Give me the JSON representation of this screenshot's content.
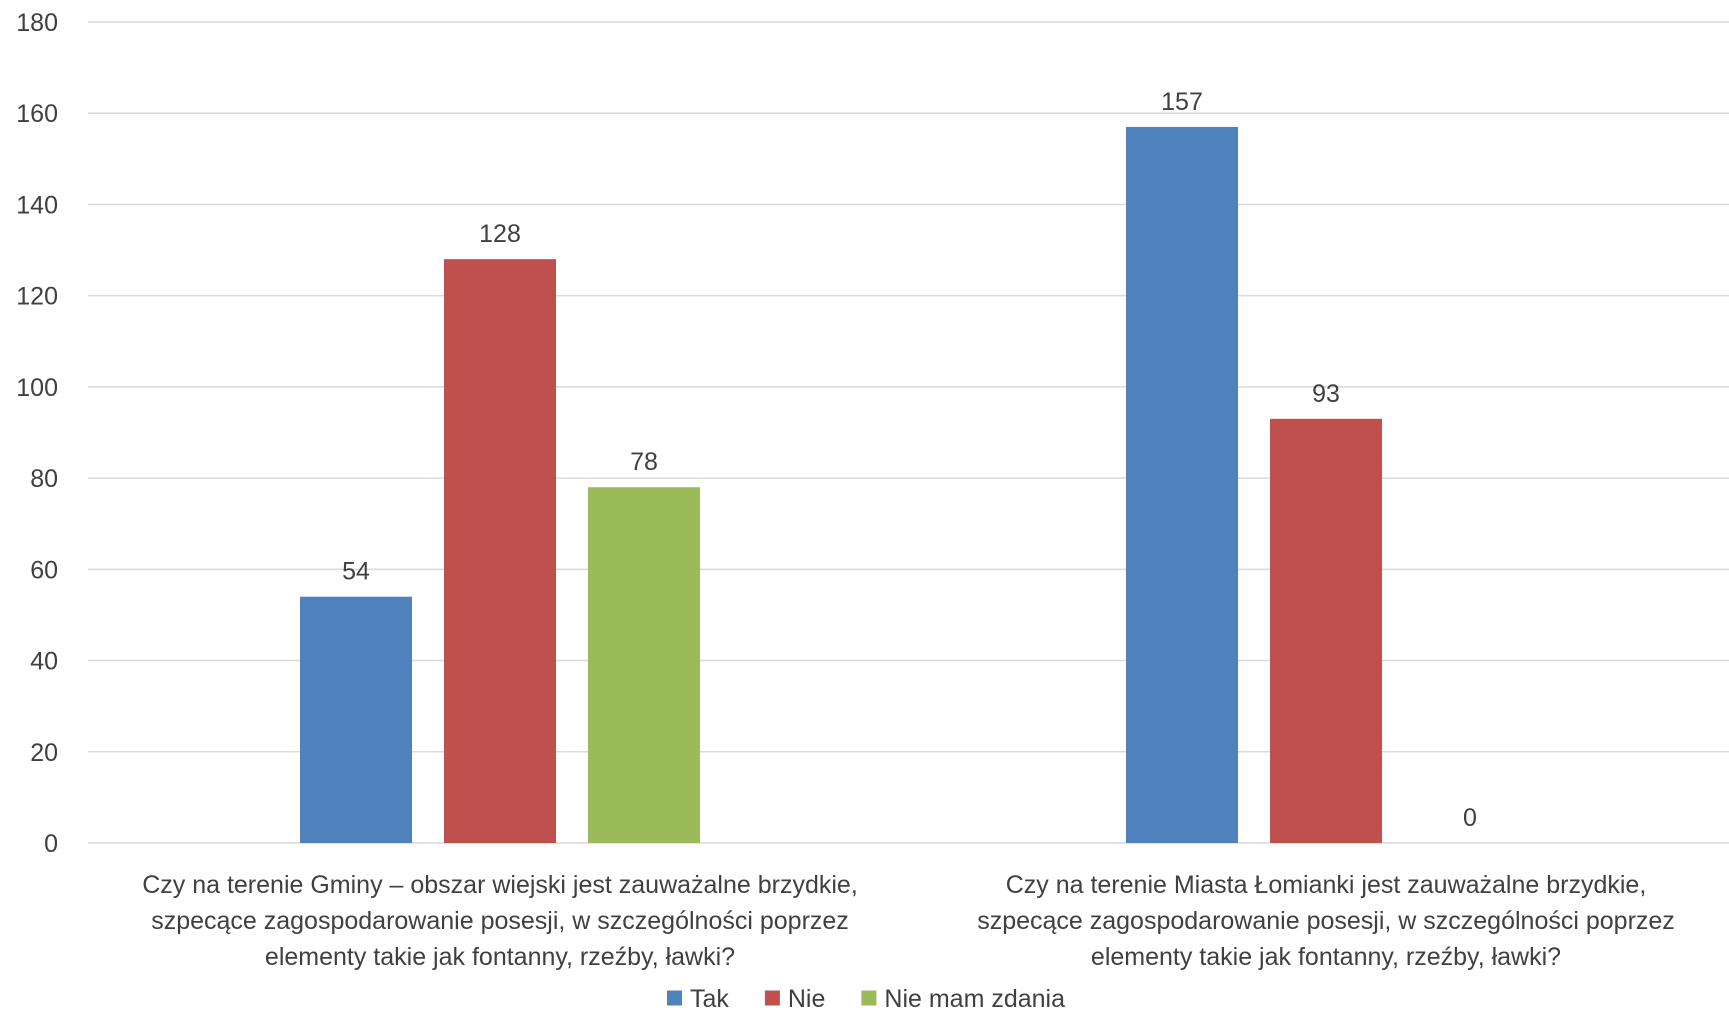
{
  "chart_data": {
    "type": "bar",
    "title": "",
    "xlabel": "",
    "ylabel": "",
    "ylim": [
      0,
      180
    ],
    "yticks": [
      0,
      20,
      40,
      60,
      80,
      100,
      120,
      140,
      160,
      180
    ],
    "grid": true,
    "legend_position": "bottom",
    "categories": [
      [
        "Czy na terenie Gminy – obszar wiejski jest zauważalne brzydkie,",
        "szpecące zagospodarowanie posesji, w szczególności poprzez",
        "elementy takie jak fontanny, rzeźby, ławki?"
      ],
      [
        "Czy na terenie Miasta Łomianki jest zauważalne brzydkie,",
        "szpecące zagospodarowanie posesji, w szczególności poprzez",
        "elementy takie jak fontanny, rzeźby, ławki?"
      ]
    ],
    "series": [
      {
        "name": "Tak",
        "color": "#4f81bd",
        "values": [
          54,
          157
        ]
      },
      {
        "name": "Nie",
        "color": "#c0504d",
        "values": [
          128,
          93
        ]
      },
      {
        "name": "Nie mam zdania",
        "color": "#9bbb59",
        "values": [
          78,
          0
        ]
      }
    ]
  }
}
